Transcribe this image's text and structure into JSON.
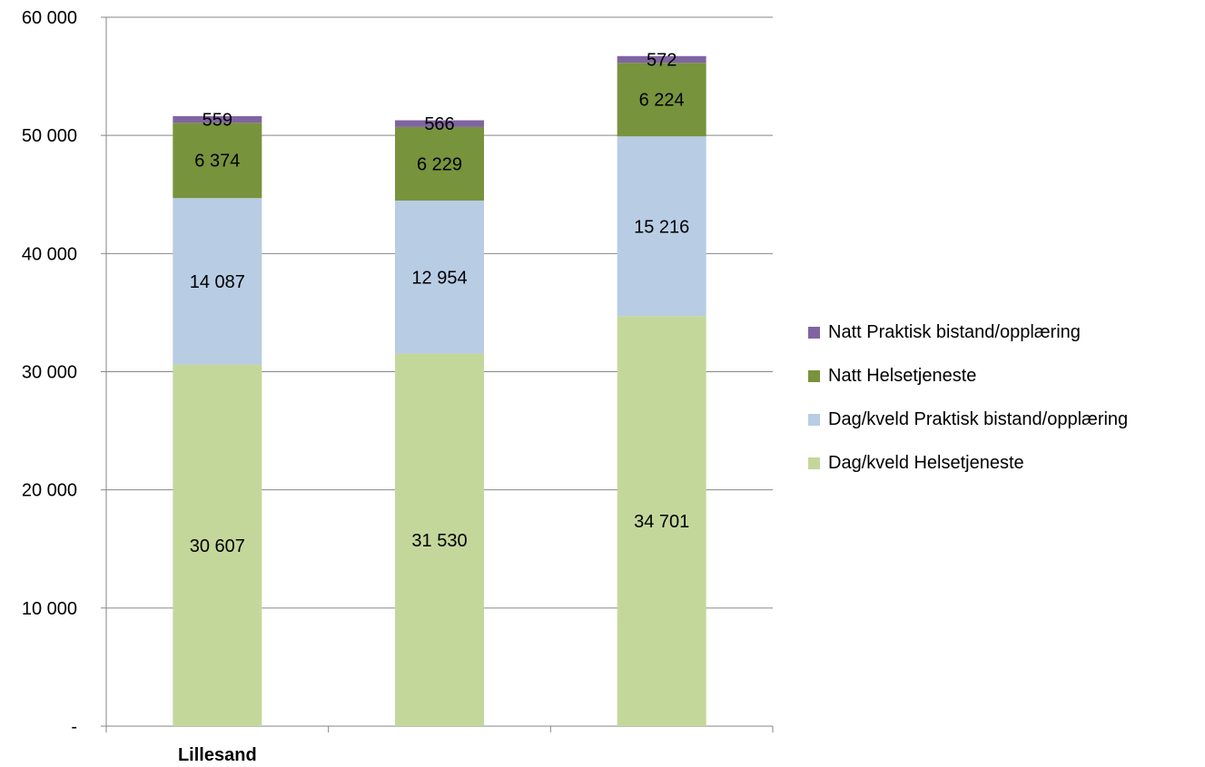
{
  "chart_data": {
    "type": "bar",
    "stacked": true,
    "categories": [
      "Lillesand",
      "",
      ""
    ],
    "series": [
      {
        "name": "Dag/kveld Helsetjeneste",
        "values": [
          30607,
          31530,
          34701
        ],
        "labels": [
          "30 607",
          "31 530",
          "34 701"
        ],
        "color": "#c4d79b"
      },
      {
        "name": "Dag/kveld Praktisk bistand/opplæring",
        "values": [
          14087,
          12954,
          15216
        ],
        "labels": [
          "14 087",
          "12 954",
          "15 216"
        ],
        "color": "#b8cce4"
      },
      {
        "name": "Natt Helsetjeneste",
        "values": [
          6374,
          6229,
          6224
        ],
        "labels": [
          "6 374",
          "6 229",
          "6 224"
        ],
        "color": "#77933c"
      },
      {
        "name": "Natt Praktisk bistand/opplæring",
        "values": [
          559,
          566,
          572
        ],
        "labels": [
          "559",
          "566",
          "572"
        ],
        "color": "#8064a2"
      }
    ],
    "ylim": [
      0,
      60000
    ],
    "yticks": [
      0,
      10000,
      20000,
      30000,
      40000,
      50000,
      60000
    ],
    "ytick_labels": [
      "-",
      "10 000",
      "20 000",
      "30 000",
      "40 000",
      "50 000",
      "60 000"
    ],
    "grid": true,
    "legend_position": "right",
    "legend_order": [
      3,
      2,
      1,
      0
    ]
  }
}
